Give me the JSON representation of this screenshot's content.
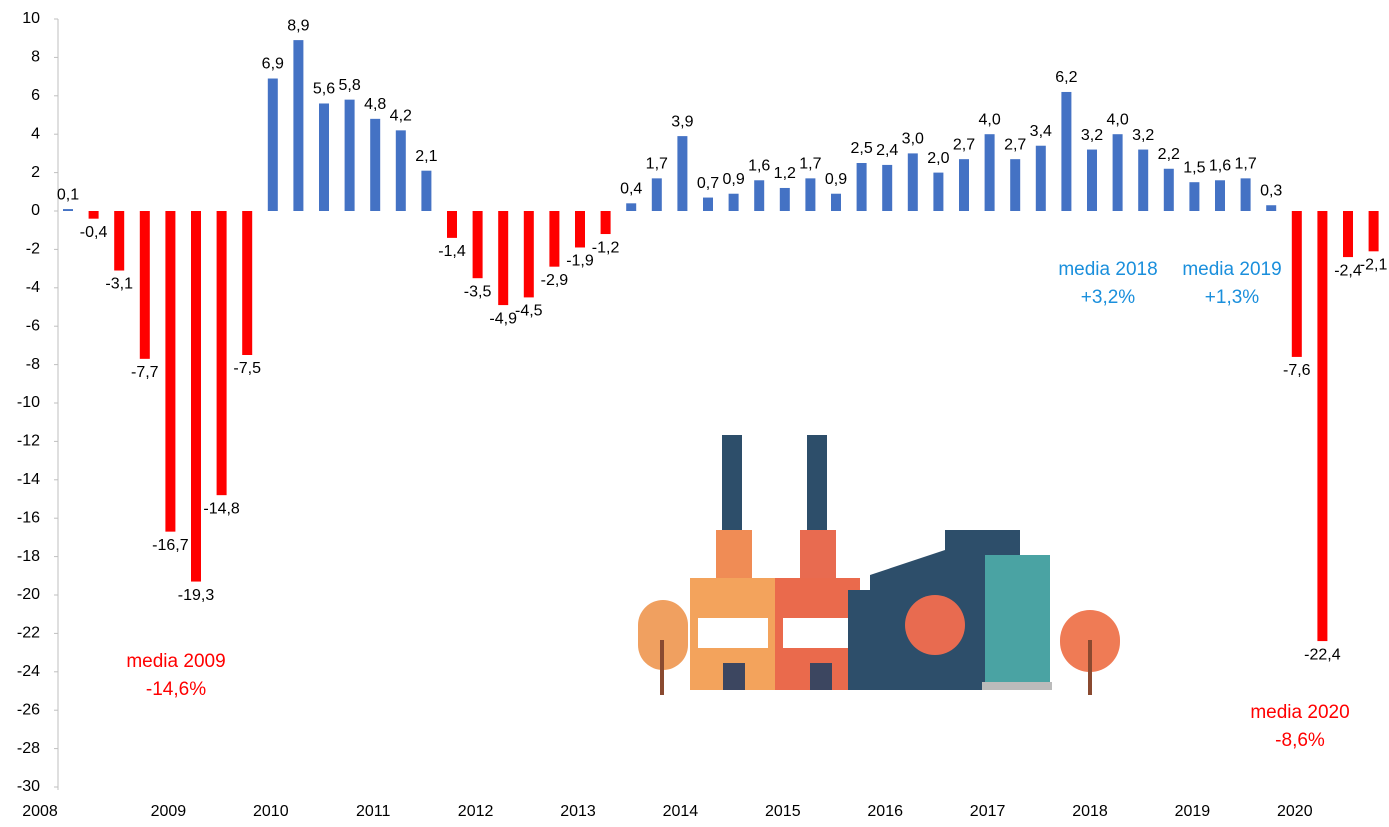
{
  "chart_data": {
    "type": "bar",
    "categories": [
      "2008",
      null,
      null,
      null,
      "2009",
      null,
      null,
      null,
      "2010",
      null,
      null,
      null,
      "2011",
      null,
      null,
      null,
      "2012",
      null,
      null,
      null,
      "2013",
      null,
      null,
      null,
      "2014",
      null,
      null,
      null,
      "2015",
      null,
      null,
      null,
      "2016",
      null,
      null,
      null,
      "2017",
      null,
      null,
      null,
      "2018",
      null,
      null,
      null,
      "2019",
      null,
      null,
      null,
      "2020",
      null,
      null,
      null
    ],
    "values": [
      0.1,
      -0.4,
      -3.1,
      -7.7,
      -16.7,
      -19.3,
      -14.8,
      -7.5,
      6.9,
      8.9,
      5.6,
      5.8,
      4.8,
      4.2,
      2.1,
      -1.4,
      -3.5,
      -4.9,
      -4.5,
      -2.9,
      -1.9,
      -1.2,
      0.4,
      1.7,
      3.9,
      0.7,
      0.9,
      1.6,
      1.2,
      1.7,
      0.9,
      2.5,
      2.4,
      3.0,
      2.0,
      2.7,
      4.0,
      2.7,
      3.4,
      6.2,
      3.2,
      4.0,
      3.2,
      2.2,
      1.5,
      1.6,
      1.7,
      0.3,
      -7.6,
      -22.4,
      -2.4,
      -2.1
    ],
    "value_labels": [
      "0,1",
      "-0,4",
      "-3,1",
      "-7,7",
      "-16,7",
      "-19,3",
      "-14,8",
      "-7,5",
      "6,9",
      "8,9",
      "5,6",
      "5,8",
      "4,8",
      "4,2",
      "2,1",
      "-1,4",
      "-3,5",
      "-4,9",
      "-4,5",
      "-2,9",
      "-1,9",
      "-1,2",
      "0,4",
      "1,7",
      "3,9",
      "0,7",
      "0,9",
      "1,6",
      "1,2",
      "1,7",
      "0,9",
      "2,5",
      "2,4",
      "3,0",
      "2,0",
      "2,7",
      "4,0",
      "2,7",
      "3,4",
      "6,2",
      "3,2",
      "4,0",
      "3,2",
      "2,2",
      "1,5",
      "1,6",
      "1,7",
      "0,3",
      "-7,6",
      "-22,4",
      "-2,4",
      "-2,1"
    ],
    "positive_color": "#4472c4",
    "negative_color": "#ff0000",
    "ylim": [
      -30,
      10
    ],
    "yticks": [
      -30,
      -28,
      -26,
      -24,
      -22,
      -20,
      -18,
      -16,
      -14,
      -12,
      -10,
      -8,
      -6,
      -4,
      -2,
      0,
      2,
      4,
      6,
      8,
      10
    ],
    "grid": false,
    "annotations": [
      {
        "lines": [
          "media 2009",
          "-14,6%"
        ],
        "color": "#ff0000"
      },
      {
        "lines": [
          "media 2018",
          "+3,2%"
        ],
        "color": "#1a8fdc"
      },
      {
        "lines": [
          "media 2019",
          "+1,3%"
        ],
        "color": "#1a8fdc"
      },
      {
        "lines": [
          "media 2020",
          "-8,6%"
        ],
        "color": "#ff0000"
      }
    ]
  }
}
